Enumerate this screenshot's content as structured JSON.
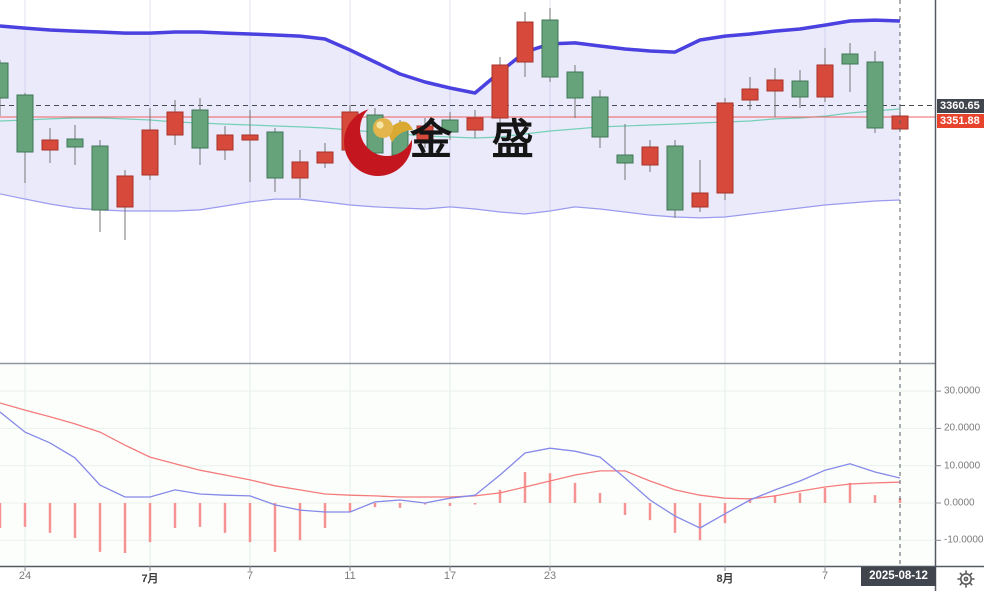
{
  "watermark": {
    "text": "金 盛"
  },
  "price_pane": {
    "labels": [
      {
        "text": "3360.65",
        "value": 3360.65,
        "style": "dark",
        "line": "dashed"
      },
      {
        "text": "3351.88",
        "value": 3351.88,
        "style": "red",
        "line": "solid"
      }
    ]
  },
  "x_axis": {
    "ticks": [
      {
        "index": 1,
        "label": "24",
        "emphasis": false
      },
      {
        "index": 6,
        "label": "7月",
        "emphasis": true
      },
      {
        "index": 10,
        "label": "7",
        "emphasis": false
      },
      {
        "index": 14,
        "label": "11",
        "emphasis": false
      },
      {
        "index": 18,
        "label": "17",
        "emphasis": false
      },
      {
        "index": 22,
        "label": "23",
        "emphasis": false
      },
      {
        "index": 29,
        "label": "8月",
        "emphasis": true
      },
      {
        "index": 33,
        "label": "7",
        "emphasis": false
      }
    ],
    "date_badge": "2025-08-12"
  },
  "macd_axis": {
    "ticks": [
      {
        "value": 30,
        "label": "30.0000"
      },
      {
        "value": 20,
        "label": "20.0000"
      },
      {
        "value": 10,
        "label": "10.0000"
      },
      {
        "value": 0,
        "label": "0.0000"
      },
      {
        "value": -10,
        "label": "-10.0000"
      }
    ]
  },
  "icons": {
    "settings": "gear-icon",
    "logo": "jinsheng-logo-icon"
  },
  "colors": {
    "candle_up_fill": "#66a37b",
    "candle_up_border": "#3f7757",
    "candle_down_fill": "#d6493b",
    "candle_down_border": "#a8332a",
    "wick": "#757575",
    "boll_upper": "#4a41e0",
    "boll_lower": "#9b9bef",
    "boll_fill": "rgba(123,126,222,0.16)",
    "ma_teal": "#76d0b9",
    "price_line_red": "#ef6060",
    "dashed_line": "#474b54",
    "macd_dif_blue": "#8689e8",
    "macd_dea_red": "#f47c7c",
    "macd_hist": "#f59292",
    "badge_dark": "#41454e",
    "badge_red": "#e8432c",
    "axis_line": "#555a62",
    "tick_text": "#7b7b7b",
    "logo_red": "#c3161e",
    "logo_gold": "#e3b64d"
  },
  "chart_data": {
    "type": "candlestick",
    "title": "",
    "panes": [
      "price+bollinger",
      "macd"
    ],
    "x_tick_labels": [
      "24",
      "7月",
      "7",
      "11",
      "17",
      "23",
      "8月",
      "7"
    ],
    "price_refs": [
      3360.65,
      3351.88
    ],
    "macd_ylim": [
      -15,
      35
    ],
    "candles": [
      [
        3366.37,
        3395.35,
        3352.64,
        3393.06
      ],
      [
        3325.19,
        3370.18,
        3301.55,
        3368.66
      ],
      [
        3334.34,
        3343.49,
        3316.8,
        3326.71
      ],
      [
        3329.0,
        3345.78,
        3315.27,
        3335.1
      ],
      [
        3280.96,
        3334.34,
        3264.18,
        3329.76
      ],
      [
        3306.89,
        3311.46,
        3258.08,
        3283.25
      ],
      [
        3341.96,
        3358.74,
        3303.84,
        3307.65
      ],
      [
        3355.69,
        3364.84,
        3330.53,
        3338.15
      ],
      [
        3328.24,
        3366.37,
        3315.27,
        3357.22
      ],
      [
        3338.15,
        3345.02,
        3319.09,
        3326.71
      ],
      [
        3338.15,
        3357.22,
        3302.31,
        3334.34
      ],
      [
        3305.36,
        3343.49,
        3294.68,
        3340.44
      ],
      [
        3317.57,
        3326.71,
        3290.11,
        3305.36
      ],
      [
        3325.19,
        3332.05,
        3312.99,
        3316.8
      ],
      [
        3355.69,
        3361.03,
        3319.09,
        3326.71
      ],
      [
        3324.43,
        3358.74,
        3319.09,
        3353.41
      ],
      [
        3322.9,
        3349.59,
        3317.57,
        3343.49
      ],
      [
        3345.02,
        3351.12,
        3328.24,
        3334.34
      ],
      [
        3340.44,
        3355.69,
        3334.34,
        3349.59
      ],
      [
        3351.12,
        3357.22,
        3335.86,
        3341.96
      ],
      [
        3391.54,
        3397.64,
        3345.78,
        3351.12
      ],
      [
        3424.32,
        3431.95,
        3382.38,
        3393.82
      ],
      [
        3382.38,
        3435.0,
        3378.57,
        3425.85
      ],
      [
        3366.37,
        3391.54,
        3351.12,
        3386.2
      ],
      [
        3336.63,
        3372.47,
        3328.24,
        3367.13
      ],
      [
        3316.8,
        3346.54,
        3303.84,
        3322.9
      ],
      [
        3329.0,
        3334.34,
        3309.93,
        3315.27
      ],
      [
        3280.96,
        3334.34,
        3274.86,
        3329.76
      ],
      [
        3293.92,
        3319.09,
        3279.43,
        3283.25
      ],
      [
        3362.56,
        3366.37,
        3288.58,
        3293.92
      ],
      [
        3373.23,
        3382.38,
        3357.22,
        3364.84
      ],
      [
        3380.1,
        3389.25,
        3351.88,
        3371.71
      ],
      [
        3367.13,
        3387.72,
        3358.74,
        3379.33
      ],
      [
        3391.54,
        3404.5,
        3363.32,
        3367.13
      ],
      [
        3392.3,
        3408.31,
        3370.94,
        3399.92
      ],
      [
        3343.49,
        3402.21,
        3339.68,
        3393.82
      ],
      [
        3352.64,
        3358.74,
        3341.2,
        3342.73
      ]
    ],
    "bollinger": {
      "upper": [
        3421.3,
        3419.7,
        3418.2,
        3417.4,
        3416.7,
        3415.9,
        3415.9,
        3416.7,
        3416.7,
        3415.9,
        3415.2,
        3414.4,
        3413.6,
        3411.4,
        3403.0,
        3393.8,
        3384.7,
        3378.6,
        3374.0,
        3370.2,
        3386.2,
        3401.4,
        3407.6,
        3408.4,
        3406.0,
        3403.7,
        3402.2,
        3401.4,
        3410.6,
        3413.6,
        3415.2,
        3417.4,
        3419.0,
        3422.0,
        3425.1,
        3425.8,
        3425.1
      ],
      "lower": [
        3293.2,
        3289.3,
        3285.5,
        3282.5,
        3281.0,
        3280.2,
        3280.2,
        3280.2,
        3281.0,
        3284.0,
        3287.1,
        3289.3,
        3289.3,
        3287.1,
        3284.8,
        3283.3,
        3282.5,
        3281.7,
        3283.3,
        3281.7,
        3279.4,
        3277.9,
        3280.2,
        3283.3,
        3281.7,
        3279.4,
        3277.1,
        3275.6,
        3274.9,
        3275.6,
        3277.9,
        3280.2,
        3282.5,
        3284.8,
        3286.3,
        3287.8,
        3288.6
      ],
      "middle_ma": [
        3348.8,
        3349.6,
        3350.4,
        3351.1,
        3351.1,
        3350.4,
        3349.6,
        3348.1,
        3347.3,
        3346.5,
        3345.8,
        3345.0,
        3344.3,
        3343.5,
        3342.0,
        3340.4,
        3338.9,
        3337.4,
        3336.6,
        3335.9,
        3336.6,
        3338.9,
        3341.2,
        3342.7,
        3344.3,
        3345.0,
        3345.8,
        3346.5,
        3347.3,
        3348.1,
        3348.8,
        3350.4,
        3351.1,
        3352.6,
        3354.9,
        3356.5,
        3358.0
      ]
    },
    "macd": {
      "dif": [
        24.4,
        19.0,
        16.1,
        12.1,
        4.8,
        1.6,
        1.6,
        3.5,
        2.4,
        2.1,
        1.9,
        -0.5,
        -1.9,
        -2.4,
        -2.4,
        0.3,
        0.8,
        0.0,
        1.3,
        2.1,
        7.5,
        13.4,
        14.7,
        13.9,
        12.3,
        6.7,
        0.8,
        -3.5,
        -6.7,
        -2.9,
        0.8,
        3.5,
        5.9,
        8.8,
        10.5,
        8.3,
        6.7
      ],
      "dea": [
        26.8,
        24.9,
        23.1,
        21.2,
        19.0,
        15.5,
        12.3,
        10.5,
        8.8,
        7.5,
        6.2,
        4.6,
        3.5,
        2.4,
        2.1,
        1.9,
        1.6,
        1.6,
        1.6,
        1.9,
        2.7,
        4.3,
        5.9,
        7.5,
        8.6,
        8.6,
        5.9,
        3.5,
        2.1,
        1.3,
        1.1,
        1.9,
        3.2,
        4.3,
        5.1,
        5.4,
        5.6
      ],
      "histogram": [
        -6.7,
        -6.4,
        -8.0,
        -9.4,
        -13.1,
        -13.4,
        -10.5,
        -6.7,
        -6.4,
        -8.0,
        -10.5,
        -13.1,
        -10.0,
        -6.7,
        -2.5,
        -1.1,
        -1.3,
        -0.4,
        -0.8,
        -0.4,
        3.5,
        8.3,
        8.0,
        5.4,
        2.7,
        -3.2,
        -4.6,
        -8.0,
        -10.0,
        -5.4,
        1.3,
        2.1,
        2.7,
        4.0,
        5.4,
        2.1,
        1.3
      ]
    }
  }
}
